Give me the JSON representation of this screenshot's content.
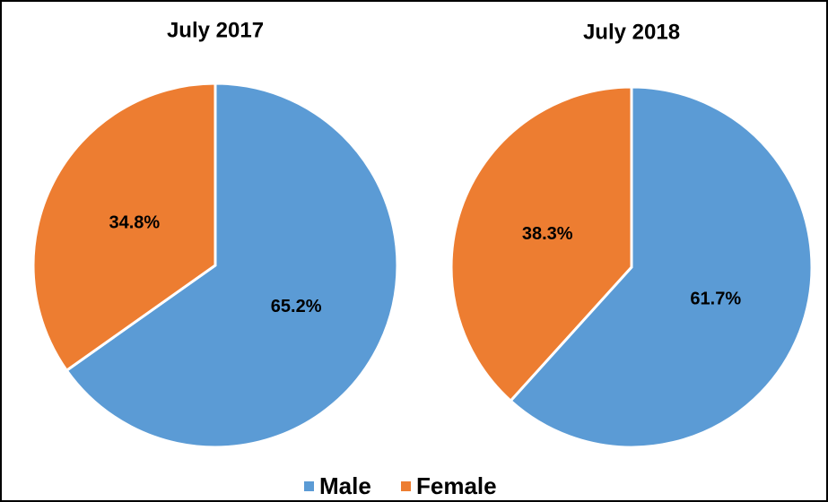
{
  "chart_data": [
    {
      "type": "pie",
      "title": "July 2017",
      "categories": [
        "Male",
        "Female"
      ],
      "values": [
        65.2,
        34.8
      ],
      "value_labels": [
        "65.2%",
        "34.8%"
      ],
      "colors": [
        "#5b9bd5",
        "#ed7d31"
      ]
    },
    {
      "type": "pie",
      "title": "July 2018",
      "categories": [
        "Male",
        "Female"
      ],
      "values": [
        61.7,
        38.3
      ],
      "value_labels": [
        "61.7%",
        "38.3%"
      ],
      "colors": [
        "#5b9bd5",
        "#ed7d31"
      ]
    }
  ]
}
